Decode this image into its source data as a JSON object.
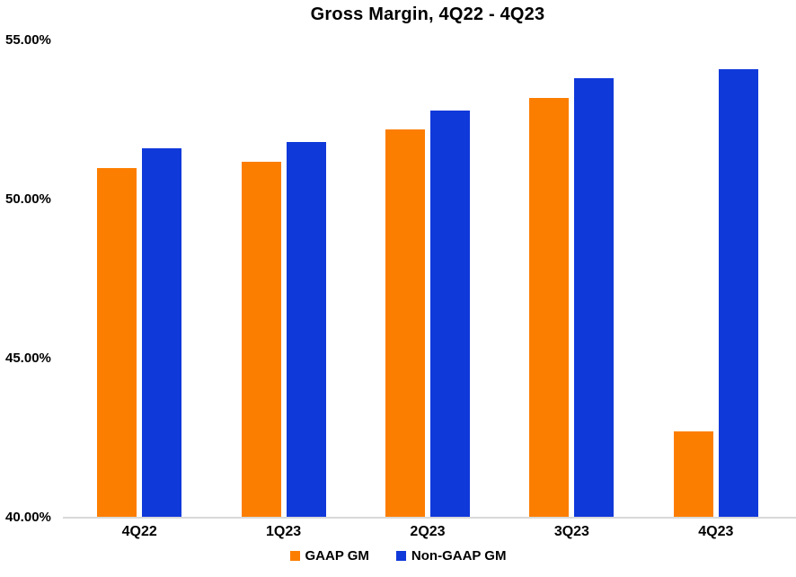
{
  "chart_data": {
    "type": "bar",
    "title": "Gross Margin, 4Q22 - 4Q23",
    "categories": [
      "4Q22",
      "1Q23",
      "2Q23",
      "3Q23",
      "4Q23"
    ],
    "series": [
      {
        "name": "GAAP GM",
        "color": "#FC7E00",
        "values": [
          51.0,
          51.2,
          52.2,
          53.2,
          42.7
        ]
      },
      {
        "name": "Non-GAAP GM",
        "color": "#1039DA",
        "values": [
          51.6,
          51.8,
          52.8,
          53.8,
          54.1
        ]
      }
    ],
    "ylim": [
      40,
      55
    ],
    "y_ticks": [
      {
        "value": 55,
        "label": "55.00%"
      },
      {
        "value": 50,
        "label": "50.00%"
      },
      {
        "value": 45,
        "label": "45.00%"
      },
      {
        "value": 40,
        "label": "40.00%"
      }
    ],
    "xlabel": "",
    "ylabel": "",
    "grid": false,
    "legend_position": "bottom"
  },
  "colors": {
    "axis_line": "#D9D9D9",
    "text": "#000000",
    "background": "#FFFFFF"
  }
}
